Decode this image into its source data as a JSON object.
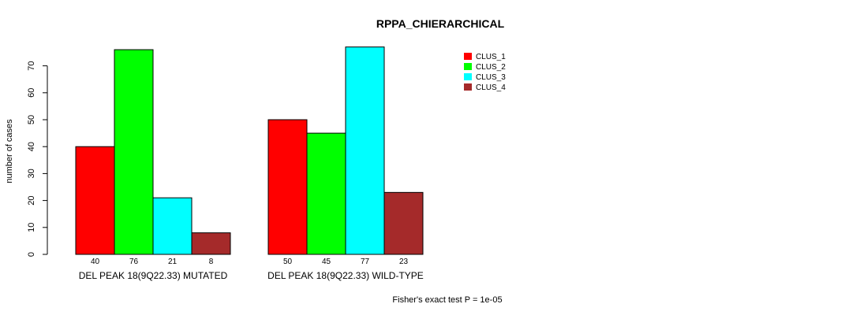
{
  "chart_data": {
    "type": "bar",
    "title": "RPPA_CHIERARCHICAL",
    "ylabel": "number of cases",
    "ylim": [
      0,
      70
    ],
    "yticks": [
      0,
      10,
      20,
      30,
      40,
      50,
      60,
      70
    ],
    "grid": false,
    "legend_position": "top-right",
    "groups": [
      {
        "label": "DEL PEAK 18(9Q22.33) MUTATED",
        "values": [
          40,
          76,
          21,
          8
        ],
        "value_labels": [
          "40",
          "76",
          "21",
          "8"
        ]
      },
      {
        "label": "DEL PEAK 18(9Q22.33) WILD-TYPE",
        "values": [
          50,
          45,
          77,
          23
        ],
        "value_labels": [
          "50",
          "45",
          "77",
          "23"
        ]
      }
    ],
    "series": [
      {
        "name": "CLUS_1",
        "color": "#ff0000"
      },
      {
        "name": "CLUS_2",
        "color": "#00ff00"
      },
      {
        "name": "CLUS_3",
        "color": "#00ffff"
      },
      {
        "name": "CLUS_4",
        "color": "#a52a2a"
      }
    ],
    "footnote": "Fisher's exact test P = 1e-05"
  }
}
